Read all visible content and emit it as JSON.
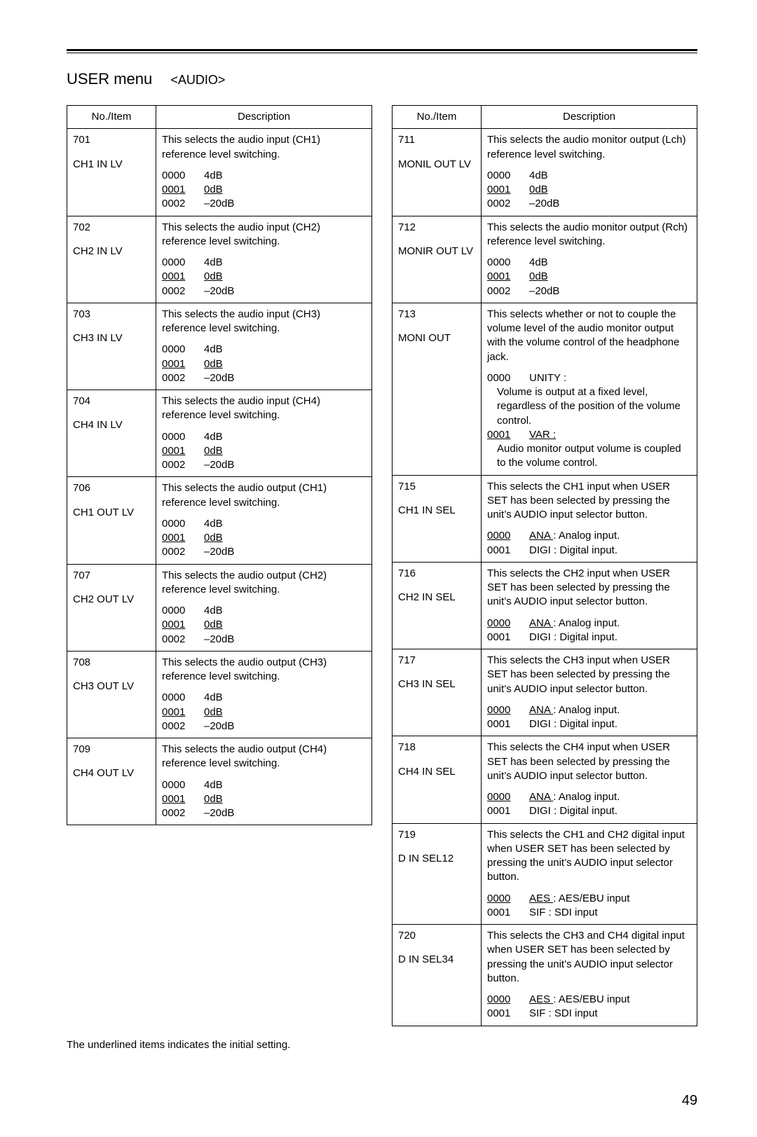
{
  "title_main": "USER menu",
  "title_cat": "<AUDIO>",
  "header_no": "No./Item",
  "header_desc": "Description",
  "page_number": "49",
  "footnote": "The underlined items indicates the initial setting.",
  "left": [
    {
      "no": "701",
      "item": "CH1 IN LV",
      "desc": "This selects the audio input (CH1) reference level switching.",
      "opts": [
        {
          "code": "0000",
          "val": "4dB",
          "u": false
        },
        {
          "code": "0001",
          "val": "0dB",
          "u": true
        },
        {
          "code": "0002",
          "val": "–20dB",
          "u": false
        }
      ]
    },
    {
      "no": "702",
      "item": "CH2 IN LV",
      "desc": "This selects the audio input (CH2) reference level switching.",
      "opts": [
        {
          "code": "0000",
          "val": "4dB",
          "u": false
        },
        {
          "code": "0001",
          "val": "0dB",
          "u": true
        },
        {
          "code": "0002",
          "val": "–20dB",
          "u": false
        }
      ]
    },
    {
      "no": "703",
      "item": "CH3 IN LV",
      "desc": "This selects the audio input (CH3) reference level switching.",
      "opts": [
        {
          "code": "0000",
          "val": "4dB",
          "u": false
        },
        {
          "code": "0001",
          "val": "0dB",
          "u": true
        },
        {
          "code": "0002",
          "val": "–20dB",
          "u": false
        }
      ]
    },
    {
      "no": "704",
      "item": "CH4 IN LV",
      "desc": "This selects the audio input (CH4) reference level switching.",
      "opts": [
        {
          "code": "0000",
          "val": "4dB",
          "u": false
        },
        {
          "code": "0001",
          "val": "0dB",
          "u": true
        },
        {
          "code": "0002",
          "val": "–20dB",
          "u": false
        }
      ]
    },
    {
      "no": "706",
      "item": "CH1 OUT LV",
      "desc": "This selects the audio output (CH1) reference level switching.",
      "opts": [
        {
          "code": "0000",
          "val": "4dB",
          "u": false
        },
        {
          "code": "0001",
          "val": "0dB",
          "u": true
        },
        {
          "code": "0002",
          "val": "–20dB",
          "u": false
        }
      ]
    },
    {
      "no": "707",
      "item": "CH2 OUT LV",
      "desc": "This selects the audio output (CH2) reference level switching.",
      "opts": [
        {
          "code": "0000",
          "val": "4dB",
          "u": false
        },
        {
          "code": "0001",
          "val": "0dB",
          "u": true
        },
        {
          "code": "0002",
          "val": "–20dB",
          "u": false
        }
      ]
    },
    {
      "no": "708",
      "item": "CH3 OUT LV",
      "desc": "This selects the audio output (CH3) reference level switching.",
      "opts": [
        {
          "code": "0000",
          "val": "4dB",
          "u": false
        },
        {
          "code": "0001",
          "val": "0dB",
          "u": true
        },
        {
          "code": "0002",
          "val": "–20dB",
          "u": false
        }
      ]
    },
    {
      "no": "709",
      "item": "CH4 OUT LV",
      "desc": "This selects the audio output (CH4) reference level switching.",
      "opts": [
        {
          "code": "0000",
          "val": "4dB",
          "u": false
        },
        {
          "code": "0001",
          "val": "0dB",
          "u": true
        },
        {
          "code": "0002",
          "val": "–20dB",
          "u": false
        }
      ]
    }
  ],
  "right": [
    {
      "no": "711",
      "item": "MONIL OUT LV",
      "desc": "This selects the audio monitor output (Lch) reference level switching.",
      "opts": [
        {
          "code": "0000",
          "val": "4dB",
          "u": false
        },
        {
          "code": "0001",
          "val": "0dB",
          "u": true
        },
        {
          "code": "0002",
          "val": "–20dB",
          "u": false
        }
      ]
    },
    {
      "no": "712",
      "item": "MONIR OUT LV",
      "desc": "This selects the audio monitor output (Rch) reference level switching.",
      "opts": [
        {
          "code": "0000",
          "val": "4dB",
          "u": false
        },
        {
          "code": "0001",
          "val": "0dB",
          "u": true
        },
        {
          "code": "0002",
          "val": "–20dB",
          "u": false
        }
      ]
    },
    {
      "no": "713",
      "item": "MONI OUT",
      "desc": "This selects whether or not to couple the volume level of the audio monitor output with the volume control of the headphone jack.",
      "opts": [
        {
          "code": "0000",
          "val": "UNITY :",
          "u": false,
          "note": "Volume is output at a fixed level, regardless of the position of the volume control."
        },
        {
          "code": "0001",
          "val": "VAR :",
          "u": true,
          "note": "Audio monitor output volume is coupled to the volume control."
        }
      ]
    },
    {
      "no": "715",
      "item": "CH1 IN SEL",
      "desc": "This selects the CH1 input when USER SET has been selected by pressing the unit’s AUDIO input selector button.",
      "opts": [
        {
          "code": "0000",
          "val": "ANA : Analog input.",
          "u": true,
          "uval_len": 4
        },
        {
          "code": "0001",
          "val": "DIGI : Digital input.",
          "u": false
        }
      ]
    },
    {
      "no": "716",
      "item": "CH2 IN SEL",
      "desc": "This selects the CH2 input when USER SET has been selected by pressing the unit’s AUDIO input selector button.",
      "opts": [
        {
          "code": "0000",
          "val": "ANA : Analog input.",
          "u": true,
          "uval_len": 4
        },
        {
          "code": "0001",
          "val": "DIGI : Digital input.",
          "u": false
        }
      ]
    },
    {
      "no": "717",
      "item": "CH3 IN SEL",
      "desc": "This selects the CH3 input when USER SET has been selected by pressing the unit’s AUDIO input selector button.",
      "opts": [
        {
          "code": "0000",
          "val": "ANA : Analog input.",
          "u": true,
          "uval_len": 4
        },
        {
          "code": "0001",
          "val": "DIGI : Digital input.",
          "u": false
        }
      ]
    },
    {
      "no": "718",
      "item": "CH4 IN SEL",
      "desc": "This selects the CH4 input when USER SET has been selected by pressing the unit’s AUDIO input selector button.",
      "opts": [
        {
          "code": "0000",
          "val": "ANA : Analog input.",
          "u": true,
          "uval_len": 4
        },
        {
          "code": "0001",
          "val": "DIGI : Digital input.",
          "u": false
        }
      ]
    },
    {
      "no": "719",
      "item": "D IN SEL12",
      "desc": "This selects the CH1 and CH2 digital input when USER SET has been selected by pressing the unit’s AUDIO input selector button.",
      "opts": [
        {
          "code": "0000",
          "val": "AES : AES/EBU input",
          "u": true,
          "uval_len": 4
        },
        {
          "code": "0001",
          "val": "SIF : SDI input",
          "u": false
        }
      ]
    },
    {
      "no": "720",
      "item": "D IN SEL34",
      "desc": "This selects the CH3 and CH4 digital input when USER SET has been selected by pressing the unit’s AUDIO input selector button.",
      "opts": [
        {
          "code": "0000",
          "val": "AES : AES/EBU input",
          "u": true,
          "uval_len": 4
        },
        {
          "code": "0001",
          "val": "SIF : SDI input",
          "u": false
        }
      ]
    }
  ]
}
